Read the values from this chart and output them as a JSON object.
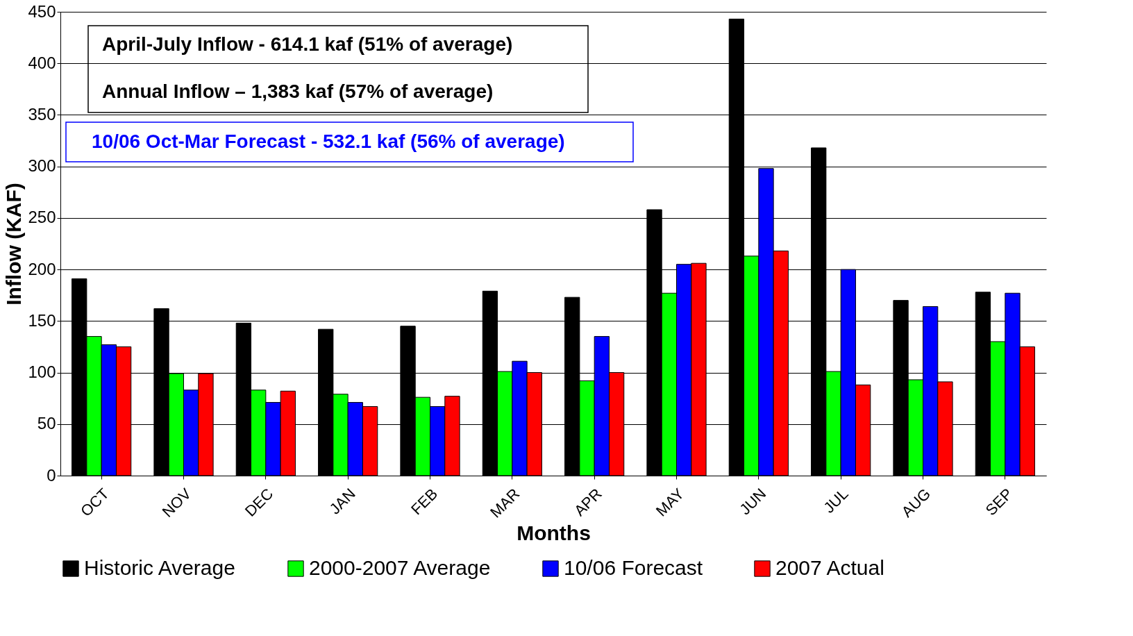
{
  "chart_data": {
    "type": "bar",
    "xlabel": "Months",
    "ylabel": "Inflow (KAF)",
    "categories": [
      "OCT",
      "NOV",
      "DEC",
      "JAN",
      "FEB",
      "MAR",
      "APR",
      "MAY",
      "JUN",
      "JUL",
      "AUG",
      "SEP"
    ],
    "series": [
      {
        "name": "Historic Average",
        "color": "#000000",
        "values": [
          191,
          162,
          148,
          142,
          145,
          179,
          173,
          258,
          443,
          318,
          170,
          178
        ]
      },
      {
        "name": "2000-2007 Average",
        "color": "#00ff00",
        "values": [
          135,
          99,
          83,
          79,
          76,
          101,
          92,
          177,
          213,
          101,
          93,
          130
        ]
      },
      {
        "name": "10/06 Forecast",
        "color": "#0000ff",
        "values": [
          127,
          83,
          71,
          71,
          67,
          111,
          135,
          205,
          298,
          200,
          164,
          177
        ]
      },
      {
        "name": "2007 Actual",
        "color": "#ff0000",
        "values": [
          125,
          99,
          82,
          67,
          77,
          100,
          100,
          206,
          218,
          88,
          91,
          125
        ]
      }
    ],
    "ylim": [
      0,
      450
    ],
    "yticks": [
      0,
      50,
      100,
      150,
      200,
      250,
      300,
      350,
      400,
      450
    ],
    "grid": "y",
    "legend": "bottom",
    "annotations": [
      "April-July Inflow - 614.1 kaf (51% of average)",
      "Annual Inflow – 1,383 kaf (57% of average)",
      "10/06 Oct-Mar Forecast - 532.1 kaf (56% of average)"
    ]
  }
}
